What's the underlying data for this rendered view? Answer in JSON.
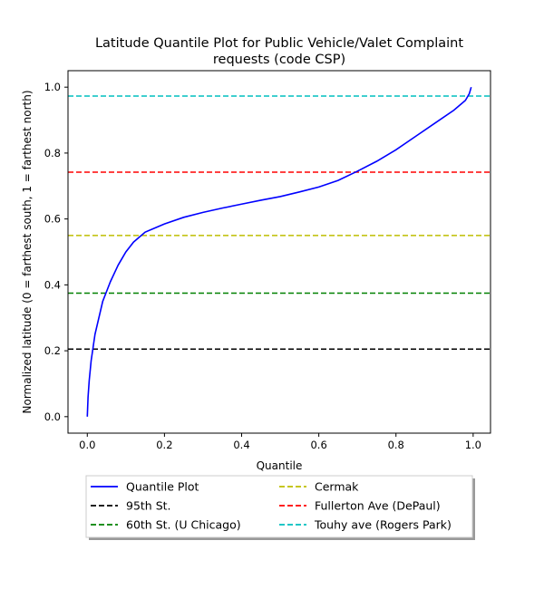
{
  "chart_data": {
    "type": "line",
    "title_line1": "Latitude Quantile Plot for Public Vehicle/Valet Complaint",
    "title_line2": "requests (code CSP)",
    "xlabel": "Quantile",
    "ylabel": "Normalized latitude (0 = farthest south, 1 = farthest north)",
    "xlim": [
      -0.05,
      1.045
    ],
    "ylim": [
      -0.05,
      1.05
    ],
    "x_ticks": [
      0.0,
      0.2,
      0.4,
      0.6,
      0.8,
      1.0
    ],
    "y_ticks": [
      0.0,
      0.2,
      0.4,
      0.6,
      0.8,
      1.0
    ],
    "x_tick_labels": [
      "0.0",
      "0.2",
      "0.4",
      "0.6",
      "0.8",
      "1.0"
    ],
    "y_tick_labels": [
      "0.0",
      "0.2",
      "0.4",
      "0.6",
      "0.8",
      "1.0"
    ],
    "grid": false,
    "legend_placement": "below plot, two columns",
    "series": [
      {
        "name": "Quantile Plot",
        "color": "#0000ff",
        "style": "solid",
        "x": [
          0.0,
          0.002,
          0.005,
          0.01,
          0.015,
          0.02,
          0.03,
          0.04,
          0.05,
          0.06,
          0.08,
          0.1,
          0.12,
          0.15,
          0.18,
          0.2,
          0.25,
          0.3,
          0.35,
          0.4,
          0.45,
          0.5,
          0.55,
          0.6,
          0.65,
          0.7,
          0.75,
          0.8,
          0.85,
          0.9,
          0.95,
          0.98,
          0.99,
          0.995
        ],
        "y": [
          0.0,
          0.06,
          0.11,
          0.17,
          0.21,
          0.25,
          0.3,
          0.35,
          0.38,
          0.41,
          0.46,
          0.5,
          0.53,
          0.56,
          0.575,
          0.585,
          0.605,
          0.62,
          0.633,
          0.645,
          0.657,
          0.668,
          0.682,
          0.697,
          0.717,
          0.745,
          0.775,
          0.81,
          0.85,
          0.89,
          0.93,
          0.96,
          0.98,
          1.0
        ]
      }
    ],
    "reference_lines": [
      {
        "name": "95th St.",
        "y": 0.205,
        "color": "#000000",
        "style": "dashed"
      },
      {
        "name": "60th St. (U Chicago)",
        "y": 0.375,
        "color": "#008000",
        "style": "dashed"
      },
      {
        "name": "Cermak",
        "y": 0.55,
        "color": "#bfbf00",
        "style": "dashed"
      },
      {
        "name": "Fullerton Ave (DePaul)",
        "y": 0.742,
        "color": "#ff0000",
        "style": "dashed"
      },
      {
        "name": "Touhy ave (Rogers Park)",
        "y": 0.973,
        "color": "#00bfbf",
        "style": "dashed"
      }
    ]
  }
}
